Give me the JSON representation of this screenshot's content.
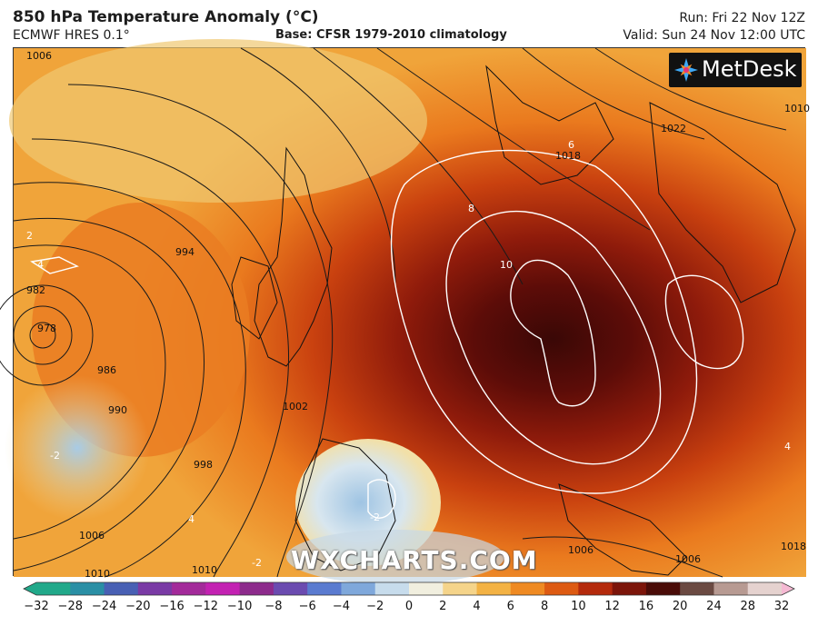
{
  "header": {
    "title": "850 hPa Temperature Anomaly (°C)",
    "model": "ECMWF HRES 0.1°",
    "base": "Base: CFSR 1979-2010 climatology",
    "run": "Run: Fri 22 Nov 12Z",
    "valid": "Valid: Sun 24 Nov 12:00 UTC"
  },
  "logo": {
    "name": "MetDesk",
    "icon": "starburst-icon"
  },
  "watermark": "WXCHARTS.COM",
  "isobar_labels": [
    "1006",
    "994",
    "982",
    "978",
    "986",
    "990",
    "998",
    "1006",
    "1010",
    "1002",
    "1010",
    "1018",
    "1022",
    "1006",
    "1018",
    "1006",
    "1010"
  ],
  "anomaly_labels": [
    "8",
    "10",
    "6",
    "4",
    "2",
    "-2",
    "4",
    "-2",
    "-2",
    "4"
  ],
  "colorbar": {
    "ticks": [
      "−32",
      "−28",
      "−24",
      "−20",
      "−16",
      "−12",
      "−10",
      "−8",
      "−6",
      "−4",
      "−2",
      "0",
      "2",
      "4",
      "6",
      "8",
      "10",
      "12",
      "16",
      "20",
      "24",
      "28",
      "32"
    ],
    "colors": [
      "#21a98a",
      "#2a8fa5",
      "#4860b4",
      "#7a3aa5",
      "#a32a9a",
      "#c321b2",
      "#8d2b8c",
      "#6b4bb0",
      "#5a7bd0",
      "#7fa8db",
      "#c7dcec",
      "#f1efdf",
      "#f5d48a",
      "#f3b244",
      "#ef8a22",
      "#dd5a12",
      "#b42a0c",
      "#7c150a",
      "#4a0c08",
      "#6b4a42",
      "#b79a92",
      "#e5d2cf",
      "#f5b9d3"
    ]
  }
}
